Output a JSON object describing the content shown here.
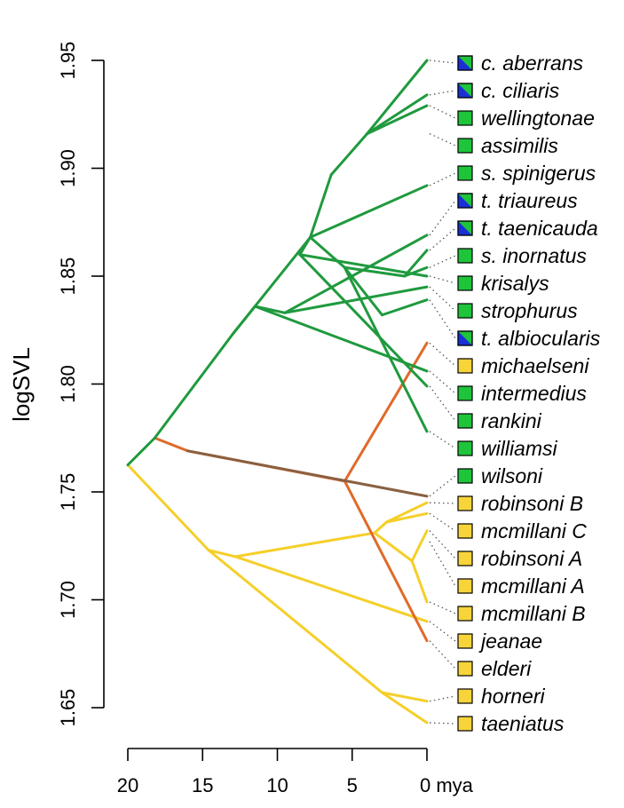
{
  "chart_data": {
    "type": "phylogenetic-traitgram",
    "ylabel": "logSVL",
    "xlabel": "mya",
    "yticks": [
      "1.65",
      "1.70",
      "1.75",
      "1.80",
      "1.85",
      "1.90",
      "1.95"
    ],
    "xticks": [
      "20",
      "15",
      "10",
      "5",
      "0 mya"
    ],
    "xlim_mya": [
      20,
      0
    ],
    "ylim": [
      1.65,
      1.95
    ],
    "colors": {
      "green": "#1f9a3e",
      "yellow": "#f5cf2a",
      "orange": "#e06a2a",
      "brown": "#8a6040",
      "square_green": "#1ec43a",
      "square_yellow": "#f7d43a",
      "square_blue": "#1a2fd6"
    },
    "nodes": [
      {
        "id": "root",
        "t": 20.0,
        "v": 1.7625
      },
      {
        "id": "g1",
        "t": 18.2,
        "v": 1.775
      },
      {
        "id": "gN",
        "t": 13.0,
        "v": 1.823
      },
      {
        "id": "gA",
        "t": 7.8,
        "v": 1.868
      },
      {
        "id": "gA2",
        "t": 6.4,
        "v": 1.897
      },
      {
        "id": "gA3",
        "t": 4.0,
        "v": 1.916
      },
      {
        "id": "gB",
        "t": 11.5,
        "v": 1.836
      },
      {
        "id": "gB2",
        "t": 9.5,
        "v": 1.833
      },
      {
        "id": "gC",
        "t": 8.5,
        "v": 1.86
      },
      {
        "id": "gD",
        "t": 5.5,
        "v": 1.854
      },
      {
        "id": "gE",
        "t": 3.0,
        "v": 1.832
      },
      {
        "id": "gF",
        "t": 1.5,
        "v": 1.85
      },
      {
        "id": "o1",
        "t": 16.0,
        "v": 1.769
      },
      {
        "id": "o2",
        "t": 5.5,
        "v": 1.755
      },
      {
        "id": "y1",
        "t": 14.6,
        "v": 1.723
      },
      {
        "id": "y2",
        "t": 12.8,
        "v": 1.72
      },
      {
        "id": "y3",
        "t": 3.5,
        "v": 1.731
      },
      {
        "id": "y4",
        "t": 2.7,
        "v": 1.736
      },
      {
        "id": "y5",
        "t": 1.0,
        "v": 1.718
      },
      {
        "id": "y6",
        "t": 3.0,
        "v": 1.657
      }
    ],
    "edges": [
      {
        "from": "root",
        "to": "g1",
        "color": "green"
      },
      {
        "from": "g1",
        "to": "gN",
        "color": "green"
      },
      {
        "from": "gN",
        "to": "gA",
        "color": "green"
      },
      {
        "from": "gA",
        "to": "gA2",
        "color": "green"
      },
      {
        "from": "gA2",
        "to": "gA3",
        "color": "green"
      },
      {
        "from": "gA3",
        "to": "t_aberrans",
        "color": "green"
      },
      {
        "from": "gA3",
        "to": "t_ciliaris",
        "color": "green"
      },
      {
        "from": "gA3",
        "to": "t_wellingtonae",
        "color": "green"
      },
      {
        "from": "gA",
        "to": "t_spinigerus",
        "color": "green"
      },
      {
        "from": "gN",
        "to": "gB",
        "color": "green"
      },
      {
        "from": "gB",
        "to": "t_intermedius",
        "color": "green"
      },
      {
        "from": "gB",
        "to": "gB2",
        "color": "green"
      },
      {
        "from": "gB2",
        "to": "t_triaureus",
        "color": "green"
      },
      {
        "from": "gB2",
        "to": "t_strophurus",
        "color": "green"
      },
      {
        "from": "gA",
        "to": "gC",
        "color": "green"
      },
      {
        "from": "gC",
        "to": "t_rankini",
        "color": "green"
      },
      {
        "from": "gC",
        "to": "t_krisalys",
        "color": "green"
      },
      {
        "from": "gA",
        "to": "gD",
        "color": "green"
      },
      {
        "from": "gD",
        "to": "t_williamsi",
        "color": "green"
      },
      {
        "from": "gD",
        "to": "gE",
        "color": "green"
      },
      {
        "from": "gE",
        "to": "t_albiocularis",
        "color": "green"
      },
      {
        "from": "gD",
        "to": "gF",
        "color": "green"
      },
      {
        "from": "gF",
        "to": "t_taenicauda",
        "color": "green"
      },
      {
        "from": "gF",
        "to": "t_inornatus",
        "color": "green"
      },
      {
        "from": "g1",
        "to": "o1",
        "color": "orange"
      },
      {
        "from": "o1",
        "to": "o2",
        "color": "orange"
      },
      {
        "from": "o2",
        "to": "t_michaelseni",
        "color": "orange"
      },
      {
        "from": "o2",
        "to": "t_elderi",
        "color": "orange"
      },
      {
        "from": "o1",
        "to": "t_wilsoni",
        "color": "brown"
      },
      {
        "from": "root",
        "to": "y1",
        "color": "yellow"
      },
      {
        "from": "y1",
        "to": "y2",
        "color": "yellow"
      },
      {
        "from": "y2",
        "to": "t_jeanae",
        "color": "yellow"
      },
      {
        "from": "y2",
        "to": "y3",
        "color": "yellow"
      },
      {
        "from": "y3",
        "to": "y4",
        "color": "yellow"
      },
      {
        "from": "y4",
        "to": "t_robinsoniB",
        "color": "yellow"
      },
      {
        "from": "y4",
        "to": "t_mcmillaniC",
        "color": "yellow"
      },
      {
        "from": "y3",
        "to": "y5",
        "color": "yellow"
      },
      {
        "from": "y5",
        "to": "t_robinsoniA",
        "color": "yellow"
      },
      {
        "from": "y5",
        "to": "t_mcmillaniB",
        "color": "yellow"
      },
      {
        "from": "y1",
        "to": "y6",
        "color": "yellow"
      },
      {
        "from": "y6",
        "to": "t_horneri",
        "color": "yellow"
      },
      {
        "from": "y6",
        "to": "t_taeniatus",
        "color": "yellow"
      }
    ],
    "tips": [
      {
        "id": "t_aberrans",
        "label": "c. aberrans",
        "v": 1.95,
        "marker": "blue-green"
      },
      {
        "id": "t_ciliaris",
        "label": "c. ciliaris",
        "v": 1.934,
        "marker": "blue-green"
      },
      {
        "id": "t_wellingtonae",
        "label": "wellingtonae",
        "v": 1.929,
        "marker": "green"
      },
      {
        "id": "t_assimilis",
        "label": "assimilis",
        "v": 1.916,
        "marker": "green"
      },
      {
        "id": "t_spinigerus",
        "label": "s. spinigerus",
        "v": 1.892,
        "marker": "green"
      },
      {
        "id": "t_triaureus",
        "label": "t. triaureus",
        "v": 1.869,
        "marker": "blue-green"
      },
      {
        "id": "t_taenicauda",
        "label": "t. taenicauda",
        "v": 1.862,
        "marker": "blue-green"
      },
      {
        "id": "t_inornatus",
        "label": "s. inornatus",
        "v": 1.854,
        "marker": "green"
      },
      {
        "id": "t_krisalys",
        "label": "krisalys",
        "v": 1.85,
        "marker": "green"
      },
      {
        "id": "t_strophurus",
        "label": "strophurus",
        "v": 1.845,
        "marker": "green"
      },
      {
        "id": "t_albiocularis",
        "label": "t. albiocularis",
        "v": 1.839,
        "marker": "blue-green"
      },
      {
        "id": "t_michaelseni",
        "label": "michaelseni",
        "v": 1.819,
        "marker": "yellow"
      },
      {
        "id": "t_intermedius",
        "label": "intermedius",
        "v": 1.806,
        "marker": "green"
      },
      {
        "id": "t_rankini",
        "label": "rankini",
        "v": 1.799,
        "marker": "green"
      },
      {
        "id": "t_williamsi",
        "label": "williamsi",
        "v": 1.778,
        "marker": "green"
      },
      {
        "id": "t_wilsoni",
        "label": "wilsoni",
        "v": 1.748,
        "marker": "green"
      },
      {
        "id": "t_robinsoniB",
        "label": "robinsoni B",
        "v": 1.745,
        "marker": "yellow"
      },
      {
        "id": "t_mcmillaniC",
        "label": "mcmillani C",
        "v": 1.74,
        "marker": "yellow"
      },
      {
        "id": "t_robinsoniA",
        "label": "robinsoni A",
        "v": 1.732,
        "marker": "yellow"
      },
      {
        "id": "t_mcmillaniA",
        "label": "mcmillani A",
        "v": 1.727,
        "marker": "yellow"
      },
      {
        "id": "t_mcmillaniB",
        "label": "mcmillani B",
        "v": 1.699,
        "marker": "yellow"
      },
      {
        "id": "t_jeanae",
        "label": "jeanae",
        "v": 1.69,
        "marker": "yellow"
      },
      {
        "id": "t_elderi",
        "label": "elderi",
        "v": 1.681,
        "marker": "yellow"
      },
      {
        "id": "t_horneri",
        "label": "horneri",
        "v": 1.653,
        "marker": "yellow"
      },
      {
        "id": "t_taeniatus",
        "label": "taeniatus",
        "v": 1.643,
        "marker": "yellow"
      }
    ]
  }
}
